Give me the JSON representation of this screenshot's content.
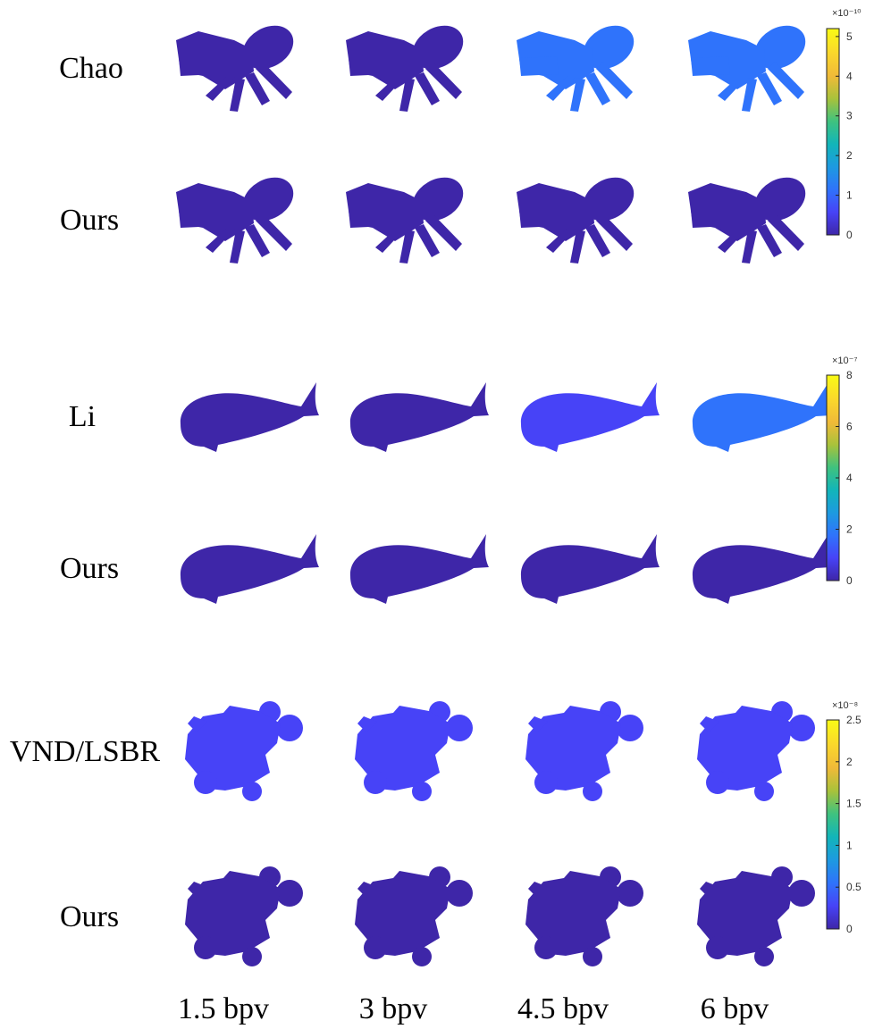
{
  "figure": {
    "rows": [
      {
        "label": "Chao",
        "shape": "ant",
        "noise": [
          0.25,
          0.25,
          0.75,
          0.7
        ]
      },
      {
        "label": "Ours",
        "shape": "ant",
        "noise": [
          0.05,
          0.05,
          0.12,
          0.22
        ]
      },
      {
        "label": "Li",
        "shape": "fish",
        "noise": [
          0.18,
          0.35,
          0.6,
          0.75
        ]
      },
      {
        "label": "Ours",
        "shape": "fish",
        "noise": [
          0.0,
          0.0,
          0.0,
          0.0
        ]
      },
      {
        "label": "VND/LSBR",
        "shape": "bear",
        "noise": [
          0.5,
          0.55,
          0.55,
          0.55
        ]
      },
      {
        "label": "Ours",
        "shape": "bear",
        "noise": [
          0.0,
          0.0,
          0.0,
          0.0
        ]
      }
    ],
    "columns": [
      "1.5 bpv",
      "3 bpv",
      "4.5 bpv",
      "6 bpv"
    ],
    "colorbars": [
      {
        "exponent": "×10⁻¹⁰",
        "min": 0,
        "max": 5.2,
        "ticks": [
          "0",
          "1",
          "2",
          "3",
          "4",
          "5"
        ],
        "tick_values": [
          0,
          1,
          2,
          3,
          4,
          5
        ]
      },
      {
        "exponent": "×10⁻⁷",
        "min": 0,
        "max": 8,
        "ticks": [
          "0",
          "2",
          "4",
          "6",
          "8"
        ],
        "tick_values": [
          0,
          2,
          4,
          6,
          8
        ]
      },
      {
        "exponent": "×10⁻⁸",
        "min": 0,
        "max": 2.5,
        "ticks": [
          "0",
          "0.5",
          "1",
          "1.5",
          "2",
          "2.5"
        ],
        "tick_values": [
          0,
          0.5,
          1,
          1.5,
          2,
          2.5
        ]
      }
    ],
    "colormap": [
      "#3e26a8",
      "#4743f7",
      "#2f73fb",
      "#1d9ae0",
      "#12b5b9",
      "#3fc27f",
      "#a8c23b",
      "#f0ba38",
      "#fad72c",
      "#f9fb15"
    ]
  }
}
